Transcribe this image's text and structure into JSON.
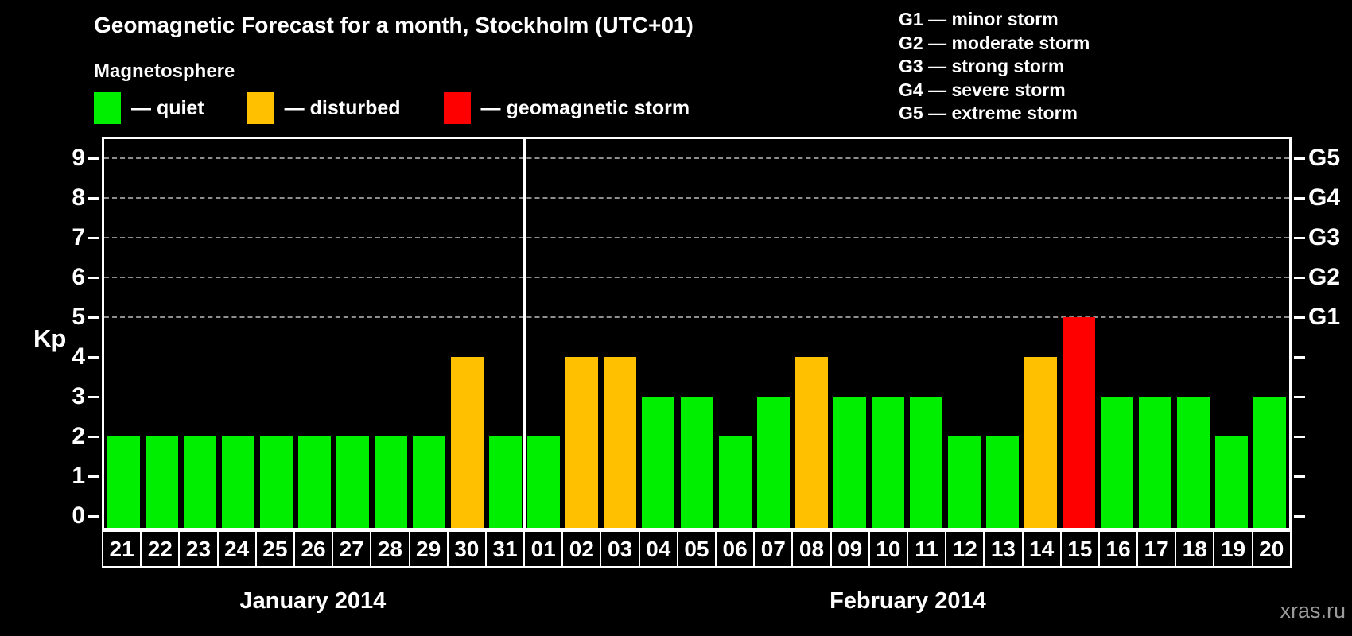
{
  "header": {
    "title": "Geomagnetic Forecast for a month, Stockholm (UTC+01)"
  },
  "legend": {
    "title": "Magnetosphere",
    "items": [
      {
        "label": "— quiet",
        "color": "#00EE00",
        "status": "quiet"
      },
      {
        "label": "— disturbed",
        "color": "#FFC000",
        "status": "disturbed"
      },
      {
        "label": "— geomagnetic storm",
        "color": "#FF0000",
        "status": "storm"
      }
    ]
  },
  "g_legend": {
    "items": [
      "G1 — minor storm",
      "G2 — moderate storm",
      "G3 — strong storm",
      "G4 — severe storm",
      "G5 — extreme storm"
    ]
  },
  "watermark": "xras.ru",
  "chart_data": {
    "type": "bar",
    "title": "Geomagnetic Forecast for a month, Stockholm (UTC+01)",
    "ylabel": "Kp",
    "ylim": [
      0,
      9
    ],
    "yticks": [
      0,
      1,
      2,
      3,
      4,
      5,
      6,
      7,
      8,
      9
    ],
    "grid_levels": [
      5,
      6,
      7,
      8,
      9
    ],
    "grid_style": "dashed",
    "legend_position": "top",
    "right_axis": [
      {
        "label": "G1",
        "kp": 5
      },
      {
        "label": "G2",
        "kp": 6
      },
      {
        "label": "G3",
        "kp": 7
      },
      {
        "label": "G4",
        "kp": 8
      },
      {
        "label": "G5",
        "kp": 9
      }
    ],
    "status_colors": {
      "quiet": "#00EE00",
      "disturbed": "#FFC000",
      "storm": "#FF0000"
    },
    "months": [
      {
        "label": "January 2014",
        "days": 11
      },
      {
        "label": "February 2014",
        "days": 20
      }
    ],
    "bars": [
      {
        "month": "January 2014",
        "day": "21",
        "kp": 2,
        "status": "quiet"
      },
      {
        "month": "January 2014",
        "day": "22",
        "kp": 2,
        "status": "quiet"
      },
      {
        "month": "January 2014",
        "day": "23",
        "kp": 2,
        "status": "quiet"
      },
      {
        "month": "January 2014",
        "day": "24",
        "kp": 2,
        "status": "quiet"
      },
      {
        "month": "January 2014",
        "day": "25",
        "kp": 2,
        "status": "quiet"
      },
      {
        "month": "January 2014",
        "day": "26",
        "kp": 2,
        "status": "quiet"
      },
      {
        "month": "January 2014",
        "day": "27",
        "kp": 2,
        "status": "quiet"
      },
      {
        "month": "January 2014",
        "day": "28",
        "kp": 2,
        "status": "quiet"
      },
      {
        "month": "January 2014",
        "day": "29",
        "kp": 2,
        "status": "quiet"
      },
      {
        "month": "January 2014",
        "day": "30",
        "kp": 4,
        "status": "disturbed"
      },
      {
        "month": "January 2014",
        "day": "31",
        "kp": 2,
        "status": "quiet"
      },
      {
        "month": "February 2014",
        "day": "01",
        "kp": 2,
        "status": "quiet"
      },
      {
        "month": "February 2014",
        "day": "02",
        "kp": 4,
        "status": "disturbed"
      },
      {
        "month": "February 2014",
        "day": "03",
        "kp": 4,
        "status": "disturbed"
      },
      {
        "month": "February 2014",
        "day": "04",
        "kp": 3,
        "status": "quiet"
      },
      {
        "month": "February 2014",
        "day": "05",
        "kp": 3,
        "status": "quiet"
      },
      {
        "month": "February 2014",
        "day": "06",
        "kp": 2,
        "status": "quiet"
      },
      {
        "month": "February 2014",
        "day": "07",
        "kp": 3,
        "status": "quiet"
      },
      {
        "month": "February 2014",
        "day": "08",
        "kp": 4,
        "status": "disturbed"
      },
      {
        "month": "February 2014",
        "day": "09",
        "kp": 3,
        "status": "quiet"
      },
      {
        "month": "February 2014",
        "day": "10",
        "kp": 3,
        "status": "quiet"
      },
      {
        "month": "February 2014",
        "day": "11",
        "kp": 3,
        "status": "quiet"
      },
      {
        "month": "February 2014",
        "day": "12",
        "kp": 2,
        "status": "quiet"
      },
      {
        "month": "February 2014",
        "day": "13",
        "kp": 2,
        "status": "quiet"
      },
      {
        "month": "February 2014",
        "day": "14",
        "kp": 4,
        "status": "disturbed"
      },
      {
        "month": "February 2014",
        "day": "15",
        "kp": 5,
        "status": "storm"
      },
      {
        "month": "February 2014",
        "day": "16",
        "kp": 3,
        "status": "quiet"
      },
      {
        "month": "February 2014",
        "day": "17",
        "kp": 3,
        "status": "quiet"
      },
      {
        "month": "February 2014",
        "day": "18",
        "kp": 3,
        "status": "quiet"
      },
      {
        "month": "February 2014",
        "day": "19",
        "kp": 2,
        "status": "quiet"
      },
      {
        "month": "February 2014",
        "day": "20",
        "kp": 3,
        "status": "quiet"
      }
    ]
  }
}
